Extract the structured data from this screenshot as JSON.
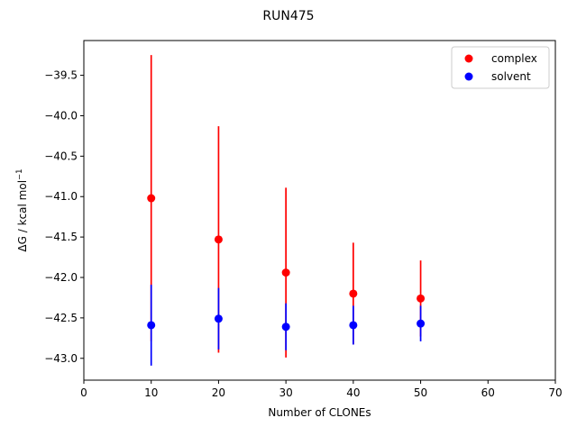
{
  "chart_data": {
    "type": "scatter",
    "title": "RUN475",
    "xlabel": "Number of CLONEs",
    "ylabel_main": "ΔG / kcal mol",
    "ylabel_sup": "−1",
    "xlim": [
      0,
      70
    ],
    "ylim": [
      -43.27,
      -39.07
    ],
    "x_ticks": [
      0,
      10,
      20,
      30,
      40,
      50,
      60,
      70
    ],
    "y_ticks": [
      -43.0,
      -42.5,
      -42.0,
      -41.5,
      -41.0,
      -40.5,
      -40.0,
      -39.5
    ],
    "y_tick_labels": [
      "−43.0",
      "−42.5",
      "−42.0",
      "−41.5",
      "−41.0",
      "−40.5",
      "−40.0",
      "−39.5"
    ],
    "grid": false,
    "legend_position": "top-right",
    "series": [
      {
        "name": "complex",
        "color": "#ff0000",
        "points": [
          {
            "x": 10,
            "y": -41.02,
            "err": 1.77
          },
          {
            "x": 20,
            "y": -41.53,
            "err": 1.4
          },
          {
            "x": 30,
            "y": -41.94,
            "err": 1.05
          },
          {
            "x": 40,
            "y": -42.2,
            "err": 0.63
          },
          {
            "x": 50,
            "y": -42.26,
            "err": 0.47
          }
        ]
      },
      {
        "name": "solvent",
        "color": "#0000ff",
        "points": [
          {
            "x": 10,
            "y": -42.59,
            "err": 0.5
          },
          {
            "x": 20,
            "y": -42.51,
            "err": 0.38
          },
          {
            "x": 30,
            "y": -42.61,
            "err": 0.29
          },
          {
            "x": 40,
            "y": -42.59,
            "err": 0.24
          },
          {
            "x": 50,
            "y": -42.57,
            "err": 0.22
          }
        ]
      }
    ]
  }
}
